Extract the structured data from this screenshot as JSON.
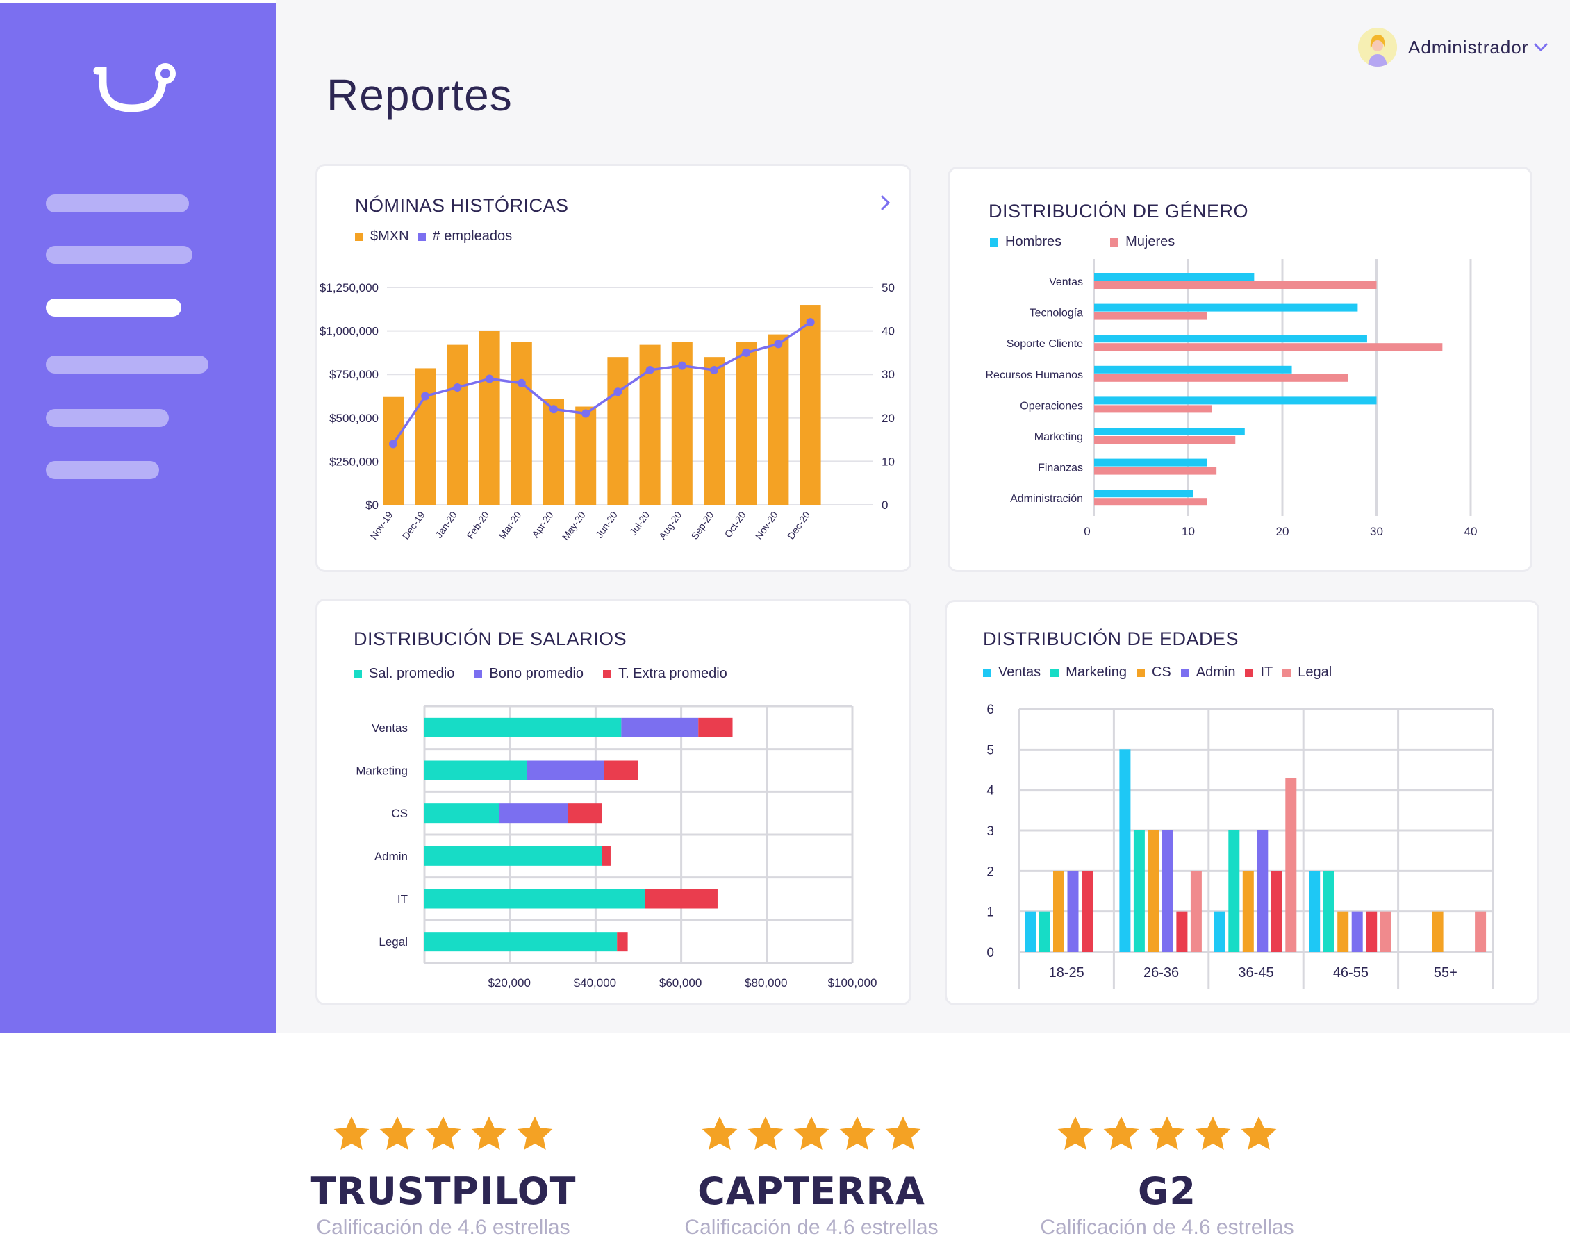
{
  "page": {
    "title": "Reportes"
  },
  "user": {
    "name": "Administrador"
  },
  "colors": {
    "sidebar": "#7b6ff0",
    "orange": "#f4a224",
    "purple": "#7b6ff0",
    "cyan": "#1ec8f5",
    "pink": "#ef8a8f",
    "teal": "#17dcc6",
    "red": "#ea3d4e",
    "salmon": "#f08a8d",
    "text": "#2d2653"
  },
  "sidebar": {
    "items": [
      {
        "name": "nav-item-1"
      },
      {
        "name": "nav-item-2"
      },
      {
        "name": "nav-item-3",
        "active": true
      },
      {
        "name": "nav-item-4"
      },
      {
        "name": "nav-item-5"
      },
      {
        "name": "nav-item-6"
      }
    ]
  },
  "cards": {
    "nominas": {
      "title": "NÓMINAS HISTÓRICAS",
      "legend": [
        "$MXN",
        "# empleados"
      ]
    },
    "genero": {
      "title": "DISTRIBUCIÓN DE GÉNERO",
      "legend": [
        "Hombres",
        "Mujeres"
      ]
    },
    "salarios": {
      "title": "DISTRIBUCIÓN DE SALARIOS",
      "legend": [
        "Sal. promedio",
        "Bono promedio",
        "T. Extra promedio"
      ]
    },
    "edades": {
      "title": "DISTRIBUCIÓN DE EDADES",
      "legend": [
        "Ventas",
        "Marketing",
        "CS",
        "Admin",
        "IT",
        "Legal"
      ]
    }
  },
  "chart_data": [
    {
      "id": "nominas",
      "type": "bar",
      "title": "NÓMINAS HISTÓRICAS",
      "categories": [
        "Nov-19",
        "Dec-19",
        "Jan-20",
        "Feb-20",
        "Mar-20",
        "Apr-20",
        "May-20",
        "Jun-20",
        "Jul-20",
        "Aug-20",
        "Sep-20",
        "Oct-20",
        "Nov-20",
        "Dec-20"
      ],
      "series": [
        {
          "name": "$MXN",
          "type": "bar",
          "axis": "left",
          "values": [
            620000,
            785000,
            920000,
            1000000,
            935000,
            610000,
            565000,
            850000,
            920000,
            935000,
            850000,
            935000,
            980000,
            1150000
          ]
        },
        {
          "name": "# empleados",
          "type": "line",
          "axis": "right",
          "values": [
            14,
            25,
            27,
            29,
            28,
            22,
            21,
            26,
            31,
            32,
            31,
            35,
            37,
            42
          ]
        }
      ],
      "yticks_left": [
        "$0",
        "$250,000",
        "$500,000",
        "$750,000",
        "$1,000,000",
        "$1,250,000"
      ],
      "yticks_right": [
        "0",
        "10",
        "20",
        "30",
        "40",
        "50"
      ],
      "ylim_left": [
        0,
        1250000
      ],
      "ylim_right": [
        0,
        50
      ]
    },
    {
      "id": "genero",
      "type": "bar",
      "orientation": "horizontal",
      "title": "DISTRIBUCIÓN DE GÉNERO",
      "categories": [
        "Ventas",
        "Tecnología",
        "Soporte Cliente",
        "Recursos Humanos",
        "Operaciones",
        "Marketing",
        "Finanzas",
        "Administración"
      ],
      "series": [
        {
          "name": "Hombres",
          "values": [
            17,
            28,
            29,
            21,
            30,
            16,
            12,
            10.5
          ]
        },
        {
          "name": "Mujeres",
          "values": [
            30,
            12,
            37,
            27,
            12.5,
            15,
            13,
            12
          ]
        }
      ],
      "xticks": [
        "0",
        "10",
        "20",
        "30",
        "40"
      ],
      "xlim": [
        0,
        40
      ],
      "grid": true
    },
    {
      "id": "salarios",
      "type": "bar",
      "orientation": "horizontal",
      "stacked": true,
      "title": "DISTRIBUCIÓN DE SALARIOS",
      "categories": [
        "Ventas",
        "Marketing",
        "CS",
        "Admin",
        "IT",
        "Legal"
      ],
      "series": [
        {
          "name": "Sal. promedio",
          "values": [
            46000,
            24000,
            17500,
            41500,
            51500,
            45000
          ]
        },
        {
          "name": "Bono promedio",
          "values": [
            18000,
            18000,
            16000,
            0,
            0,
            0
          ]
        },
        {
          "name": "T. Extra promedio",
          "values": [
            8000,
            8000,
            8000,
            2000,
            17000,
            2500
          ]
        }
      ],
      "xticks": [
        "$20,000",
        "$40,000",
        "$60,000",
        "$80,000",
        "$100,000"
      ],
      "xlim": [
        0,
        100000
      ],
      "grid": true
    },
    {
      "id": "edades",
      "type": "bar",
      "title": "DISTRIBUCIÓN DE EDADES",
      "categories": [
        "18-25",
        "26-36",
        "36-45",
        "46-55",
        "55+"
      ],
      "series": [
        {
          "name": "Ventas",
          "values": [
            1,
            5,
            1,
            2,
            0
          ]
        },
        {
          "name": "Marketing",
          "values": [
            1,
            3,
            3,
            2,
            0
          ]
        },
        {
          "name": "CS",
          "values": [
            2,
            3,
            2,
            1,
            1
          ]
        },
        {
          "name": "Admin",
          "values": [
            2,
            3,
            3,
            1,
            0
          ]
        },
        {
          "name": "IT",
          "values": [
            2,
            1,
            2,
            1,
            0
          ]
        },
        {
          "name": "Legal",
          "values": [
            0,
            2,
            4.3,
            1,
            1
          ]
        }
      ],
      "yticks": [
        "0",
        "1",
        "2",
        "3",
        "4",
        "5",
        "6"
      ],
      "ylim": [
        0,
        6
      ],
      "grid": true
    }
  ],
  "ratings": [
    {
      "brand": "TRUSTPILOT",
      "subtitle": "Calificación de 4.6  estrellas",
      "stars": 5
    },
    {
      "brand": "CAPTERRA",
      "subtitle": "Calificación de 4.6  estrellas",
      "stars": 5
    },
    {
      "brand": "G2",
      "subtitle": "Calificación de 4.6  estrellas",
      "stars": 5
    }
  ]
}
